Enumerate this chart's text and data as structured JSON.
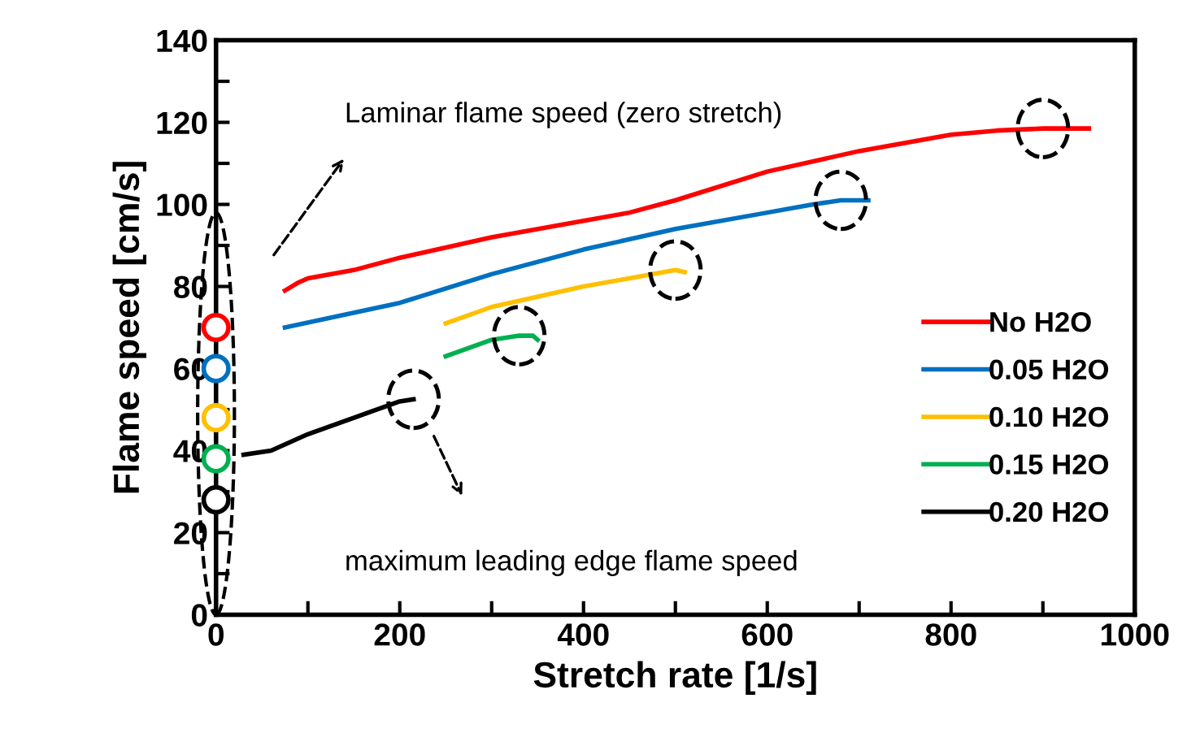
{
  "chart_data": {
    "type": "line",
    "xlabel": "Stretch rate [1/s]",
    "ylabel": "Flame speed [cm/s]",
    "xlim": [
      0,
      1000
    ],
    "xticks": [
      0,
      200,
      400,
      600,
      800,
      1000
    ],
    "ylim": [
      0,
      140
    ],
    "yticks": [
      0,
      20,
      40,
      60,
      80,
      100,
      120,
      140
    ],
    "grid": false,
    "legend": "right",
    "marker": "none",
    "line_style": "solid",
    "annotations": [
      "Laminar flame speed (zero stretch)",
      "maximum leading edge flame speed"
    ],
    "series": [
      {
        "name": "No H2O",
        "color": "#ff0000",
        "x": [
          75,
          90,
          100,
          150,
          200,
          300,
          400,
          450,
          500,
          600,
          700,
          800,
          850,
          900,
          950
        ],
        "values": [
          79,
          81,
          82,
          84,
          87,
          92,
          96,
          98,
          101,
          108,
          113,
          117,
          118,
          118.5,
          118.5
        ]
      },
      {
        "name": "0.05 H2O",
        "color": "#0070c0",
        "x": [
          75,
          200,
          300,
          400,
          500,
          600,
          650,
          680,
          710
        ],
        "values": [
          70,
          76,
          83,
          89,
          94,
          98,
          100,
          101,
          101
        ]
      },
      {
        "name": "0.10 H2O",
        "color": "#ffc000",
        "x": [
          250,
          300,
          400,
          450,
          500,
          510
        ],
        "values": [
          71,
          75,
          80,
          82,
          84,
          83.5
        ]
      },
      {
        "name": "0.15 H2O",
        "color": "#00b050",
        "x": [
          250,
          300,
          330,
          345,
          350
        ],
        "values": [
          63,
          67,
          68,
          68,
          67
        ]
      },
      {
        "name": "0.20 H2O",
        "color": "#000000",
        "x": [
          30,
          60,
          100,
          150,
          200,
          215
        ],
        "values": [
          39,
          40,
          44,
          48,
          52,
          52.5
        ]
      },
      {
        "type": "scatter",
        "marker": "circle",
        "x": [
          0,
          0,
          0,
          0,
          0
        ],
        "values": [
          70,
          60,
          48,
          38,
          28
        ],
        "colors": [
          "#ff0000",
          "#0070c0",
          "#ffc000",
          "#00b050",
          "#000000"
        ]
      }
    ]
  }
}
